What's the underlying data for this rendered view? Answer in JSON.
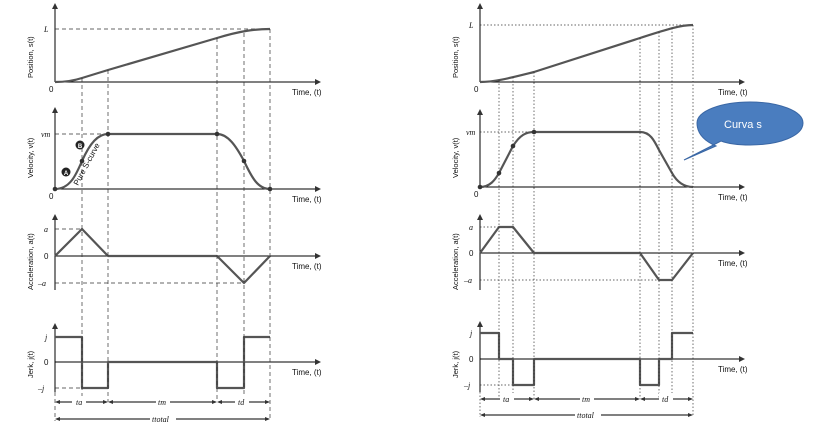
{
  "left": {
    "panels": {
      "position": {
        "ylabel": "Position, s(t)",
        "xlabel": "Time, (t)",
        "tick_top": "L",
        "origin": "0"
      },
      "velocity": {
        "ylabel": "Velocity, v(t)",
        "xlabel": "Time, (t)",
        "tick_top": "vm",
        "origin": "0",
        "marker_a": "A",
        "marker_b": "B",
        "curve_label": "Pure S-curve"
      },
      "acceleration": {
        "ylabel": "Acceleration, a(t)",
        "xlabel": "Time, (t)",
        "tick_top": "a",
        "tick_mid": "0",
        "tick_bottom": "–a"
      },
      "jerk": {
        "ylabel": "Jerk, j(t)",
        "xlabel": "Time, (t)",
        "tick_top": "j",
        "tick_mid": "0",
        "tick_bottom": "–j"
      }
    },
    "intervals": {
      "ta": "ta",
      "tm": "tm",
      "td": "td",
      "total": "ttotal"
    }
  },
  "right": {
    "panels": {
      "position": {
        "ylabel": "Position, s(t)",
        "xlabel": "Time, (t)",
        "tick_top": "L",
        "origin": "0"
      },
      "velocity": {
        "ylabel": "Velocity, v(t)",
        "xlabel": "Time, (t)",
        "tick_top": "vm",
        "origin": "0"
      },
      "acceleration": {
        "ylabel": "Acceleration, a(t)",
        "xlabel": "Time, (t)",
        "tick_top": "a",
        "tick_mid": "0",
        "tick_bottom": "–a"
      },
      "jerk": {
        "ylabel": "Jerk, j(t)",
        "xlabel": "Time, (t)",
        "tick_top": "j",
        "tick_mid": "0",
        "tick_bottom": "–j"
      }
    },
    "intervals": {
      "ta": "ta",
      "tm": "tm",
      "td": "td",
      "total": "ttotal"
    },
    "callout": {
      "text": "Curva s",
      "color": "#4a7dbf"
    }
  }
}
